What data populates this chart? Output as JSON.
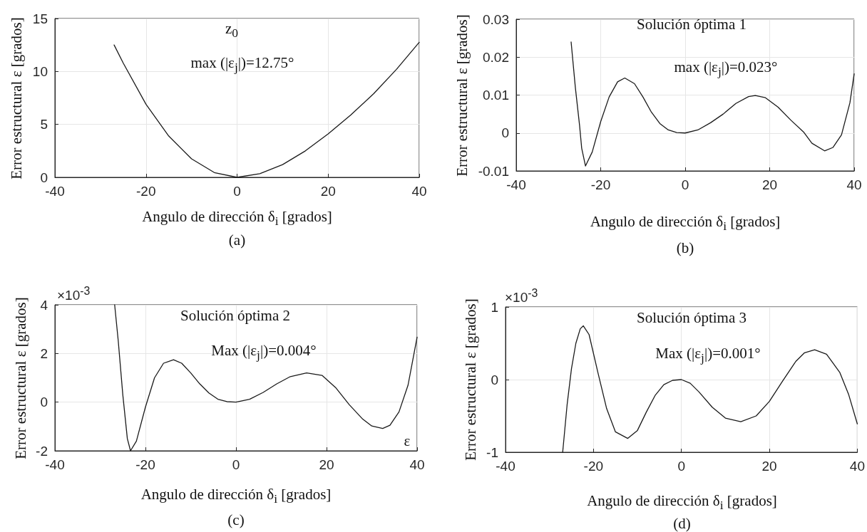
{
  "chart_data": [
    {
      "type": "line",
      "title": "(a)",
      "xlabel": "Angulo de dirección δ$_{i}$ [grados]",
      "ylabel": "Error estructural ε [grados]",
      "annotations": [
        "z$_{0}$",
        "max (|ε$_{j}$|)=12.75°"
      ],
      "x": [
        -27,
        -25,
        -20,
        -15,
        -10,
        -5,
        0,
        5,
        10,
        15,
        20,
        25,
        30,
        35,
        40
      ],
      "values": [
        12.5,
        10.8,
        6.9,
        3.9,
        1.75,
        0.45,
        0,
        0.35,
        1.2,
        2.5,
        4.1,
        5.9,
        7.9,
        10.2,
        12.75
      ],
      "color": "#1a1a1a",
      "xlim": [
        -40,
        40
      ],
      "xticks": [
        -40,
        -20,
        0,
        20,
        40
      ],
      "ylim": [
        0,
        15
      ],
      "yticks": [
        0,
        5,
        10,
        15
      ],
      "grid": true
    },
    {
      "type": "line",
      "title": "(b)",
      "xlabel": "Angulo de dirección δ$_{i}$ [grados]",
      "ylabel": "Error estructural ε [grados]",
      "annotations": [
        "Solución óptima 1",
        "max (|ε$_{j}$|)=0.023°"
      ],
      "x": [
        -27,
        -26,
        -25,
        -24.5,
        -23.6,
        -22,
        -20,
        -18,
        -16,
        -14.3,
        -12,
        -10,
        -8,
        -6,
        -4,
        -2,
        0,
        3,
        6,
        9,
        12,
        15,
        16.6,
        19,
        22,
        25,
        28,
        30,
        33,
        35,
        37,
        39,
        40
      ],
      "values": [
        0.024,
        0.012,
        0.002,
        -0.004,
        -0.0087,
        -0.005,
        0.003,
        0.0095,
        0.0135,
        0.0145,
        0.013,
        0.0095,
        0.0055,
        0.0025,
        0.0008,
        0.0001,
        0,
        0.0008,
        0.0027,
        0.005,
        0.0078,
        0.0096,
        0.0099,
        0.0093,
        0.0068,
        0.0034,
        0.0003,
        -0.0027,
        -0.0047,
        -0.0038,
        -0.0005,
        0.008,
        0.0156
      ],
      "color": "#1a1a1a",
      "xlim": [
        -40,
        40
      ],
      "xticks": [
        -40,
        -20,
        0,
        20,
        40
      ],
      "ylim": [
        -0.01,
        0.03
      ],
      "yticks": [
        -0.01,
        0,
        0.01,
        0.02,
        0.03
      ],
      "grid": true
    },
    {
      "type": "line",
      "title": "(c)",
      "xlabel": "Angulo de dirección δ$_{i}$ [grados]",
      "ylabel": "Error estructural ε [grados]",
      "annotations": [
        "×10$^{-3}$",
        "Solución óptima 2",
        "Max (|ε$_{j}$|)=0.004°",
        "ε"
      ],
      "x": [
        -26.8,
        -26,
        -25,
        -24,
        -23.3,
        -22,
        -20,
        -18,
        -16,
        -13.8,
        -12,
        -10,
        -8,
        -6,
        -4,
        -2,
        0,
        3,
        6,
        9,
        12,
        15.6,
        19,
        22,
        25,
        28,
        30,
        32.4,
        34,
        36,
        38,
        40
      ],
      "values": [
        4,
        2.5,
        0.3,
        -1.5,
        -2,
        -1.6,
        -0.2,
        1,
        1.6,
        1.74,
        1.6,
        1.2,
        0.75,
        0.38,
        0.12,
        0.02,
        0,
        0.12,
        0.4,
        0.75,
        1.05,
        1.2,
        1.1,
        0.6,
        -0.1,
        -0.7,
        -0.98,
        -1.08,
        -0.95,
        -0.4,
        0.7,
        2.67
      ],
      "color": "#1a1a1a",
      "xlim": [
        -40,
        40
      ],
      "xticks": [
        -40,
        -20,
        0,
        20,
        40
      ],
      "ylim": [
        -2,
        4
      ],
      "yticks": [
        -2,
        0,
        2,
        4
      ],
      "grid": true
    },
    {
      "type": "line",
      "title": "(d)",
      "xlabel": "Angulo de dirección δ$_{i}$ [grados]",
      "ylabel": "Error estructural ε [grados]",
      "annotations": [
        "×10$^{-3}$",
        "Solución óptima 3",
        "Max (|ε$_{j}$|)=0.001°"
      ],
      "x": [
        -27,
        -26,
        -25,
        -24,
        -23,
        -22.3,
        -21,
        -19,
        -17,
        -15,
        -12.2,
        -10,
        -8,
        -6,
        -4,
        -2,
        0,
        2,
        4,
        7,
        10,
        13.5,
        17,
        20,
        23,
        26,
        28,
        30.3,
        33,
        36,
        38,
        40
      ],
      "values": [
        -1,
        -0.35,
        0.15,
        0.5,
        0.7,
        0.74,
        0.62,
        0.1,
        -0.4,
        -0.72,
        -0.81,
        -0.7,
        -0.45,
        -0.22,
        -0.07,
        -0.01,
        0,
        -0.05,
        -0.17,
        -0.38,
        -0.53,
        -0.58,
        -0.5,
        -0.3,
        -0.02,
        0.25,
        0.37,
        0.41,
        0.35,
        0.1,
        -0.2,
        -0.61
      ],
      "color": "#1a1a1a",
      "xlim": [
        -40,
        40
      ],
      "xticks": [
        -40,
        -20,
        0,
        20,
        40
      ],
      "ylim": [
        -1,
        1
      ],
      "yticks": [
        -1,
        0,
        1
      ],
      "grid": true
    }
  ]
}
